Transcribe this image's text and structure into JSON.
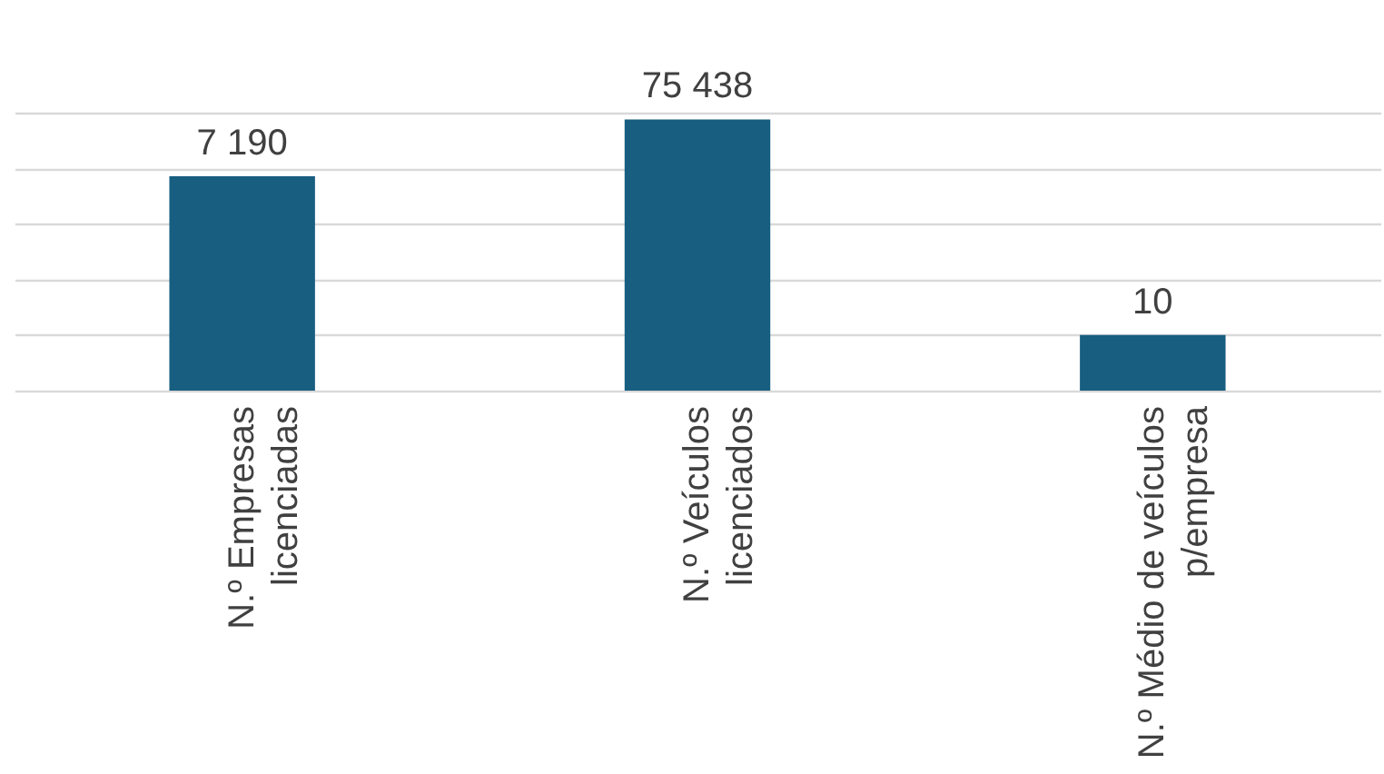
{
  "chart_data": {
    "type": "bar",
    "categories": [
      "N.º Empresas licenciadas",
      "N.º Veículos licenciados",
      "N.º Médio de veículos p/empresa"
    ],
    "values": [
      7190,
      75438,
      10
    ],
    "color": "#175e80",
    "log": true,
    "ylim": [
      1,
      100000
    ],
    "yticks": [
      {
        "value": 1,
        "label": null
      },
      {
        "value": 10,
        "label": null
      },
      {
        "value": 100,
        "label": null
      },
      {
        "value": 1000,
        "label": null
      },
      {
        "value": 10000,
        "label": null
      },
      {
        "value": 100000,
        "label": null
      }
    ],
    "grid": "y",
    "tick_labels": "x",
    "data_labels": true
  }
}
